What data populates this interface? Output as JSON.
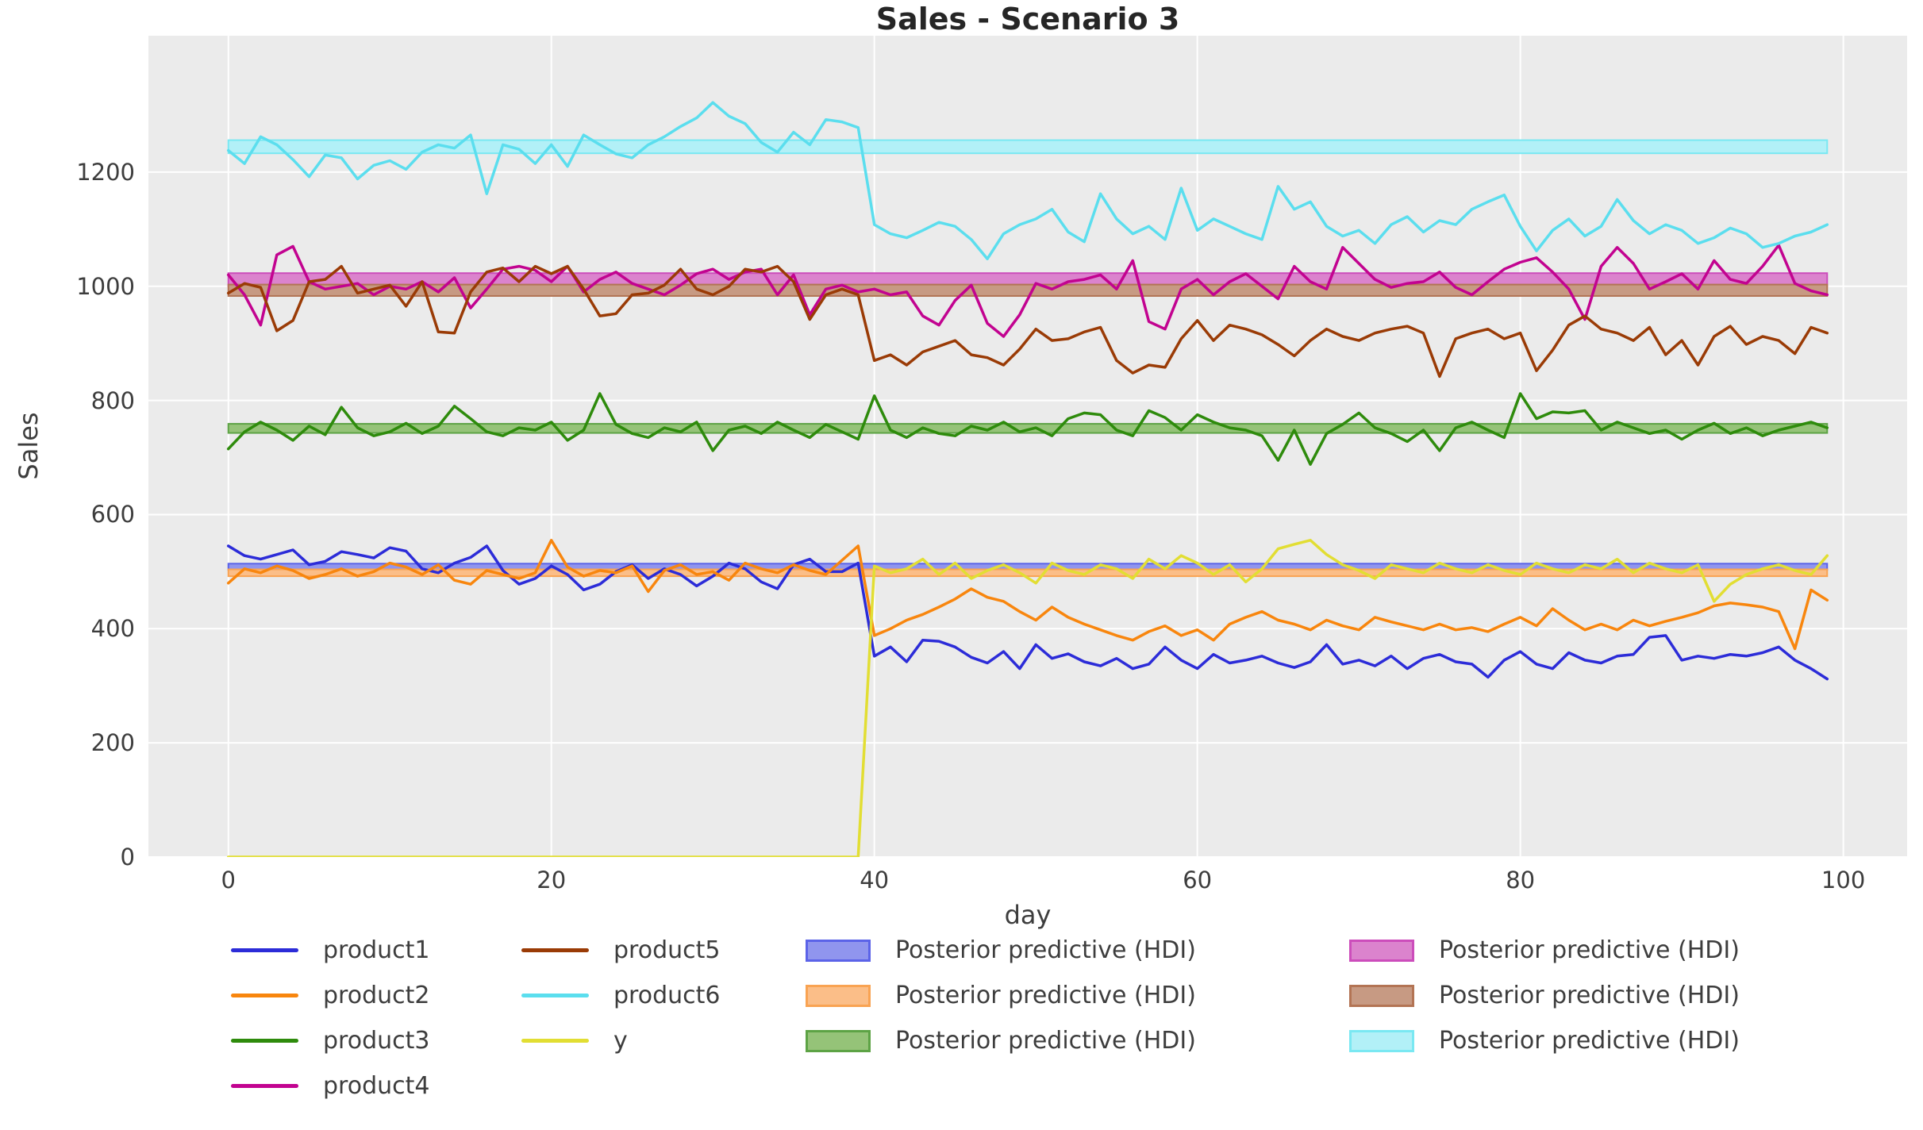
{
  "title": "Sales - Scenario 3",
  "chart_data": {
    "type": "line",
    "title": "Sales - Scenario 3",
    "xlabel": "day",
    "ylabel": "Sales",
    "xlim": [
      -4.95,
      103.95
    ],
    "ylim": [
      0,
      1439
    ],
    "x_ticks": [
      0,
      20,
      40,
      60,
      80,
      100
    ],
    "y_ticks": [
      0,
      200,
      400,
      600,
      800,
      1000,
      1200
    ],
    "grid": true,
    "grid_color": "#ffffff",
    "plot_background": "#ebebeb",
    "figure_background": "#ffffff",
    "legend_position": "below",
    "series": [
      {
        "name": "product1",
        "color": "#2c2cd8",
        "values": [
          545,
          528,
          522,
          530,
          538,
          512,
          518,
          535,
          530,
          524,
          542,
          536,
          505,
          498,
          515,
          525,
          545,
          502,
          478,
          488,
          510,
          495,
          468,
          478,
          500,
          512,
          488,
          505,
          495,
          475,
          492,
          515,
          505,
          482,
          470,
          512,
          522,
          500,
          500,
          515,
          352,
          368,
          342,
          380,
          378,
          368,
          350,
          340,
          360,
          330,
          372,
          348,
          356,
          342,
          335,
          348,
          330,
          338,
          368,
          345,
          330,
          355,
          340,
          345,
          352,
          340,
          332,
          342,
          372,
          338,
          345,
          335,
          352,
          330,
          348,
          355,
          342,
          338,
          315,
          345,
          360,
          338,
          330,
          358,
          345,
          340,
          352,
          355,
          385,
          388,
          345,
          352,
          348,
          355,
          352,
          358,
          368,
          345,
          330,
          312
        ]
      },
      {
        "name": "product2",
        "color": "#f8860e",
        "values": [
          480,
          505,
          498,
          510,
          502,
          488,
          495,
          505,
          492,
          500,
          515,
          508,
          495,
          512,
          485,
          478,
          502,
          495,
          488,
          498,
          555,
          508,
          492,
          502,
          498,
          510,
          465,
          502,
          512,
          495,
          500,
          485,
          515,
          505,
          498,
          512,
          502,
          495,
          520,
          545,
          388,
          400,
          415,
          425,
          438,
          452,
          470,
          455,
          448,
          430,
          415,
          438,
          420,
          408,
          398,
          388,
          380,
          395,
          405,
          388,
          398,
          380,
          408,
          420,
          430,
          415,
          408,
          398,
          415,
          405,
          398,
          420,
          412,
          405,
          398,
          408,
          398,
          402,
          395,
          408,
          420,
          405,
          435,
          415,
          398,
          408,
          398,
          415,
          405,
          413,
          420,
          428,
          440,
          445,
          442,
          438,
          430,
          365,
          468,
          450
        ]
      },
      {
        "name": "product3",
        "color": "#2e8b0c",
        "values": [
          715,
          745,
          762,
          748,
          730,
          755,
          740,
          788,
          752,
          738,
          745,
          760,
          742,
          755,
          790,
          768,
          745,
          738,
          752,
          748,
          762,
          730,
          748,
          812,
          758,
          742,
          735,
          752,
          745,
          762,
          712,
          748,
          755,
          742,
          762,
          748,
          735,
          758,
          745,
          732,
          808,
          748,
          735,
          752,
          742,
          738,
          755,
          748,
          762,
          745,
          752,
          738,
          768,
          778,
          775,
          748,
          738,
          782,
          770,
          748,
          775,
          762,
          752,
          748,
          738,
          695,
          748,
          688,
          742,
          758,
          778,
          752,
          742,
          728,
          748,
          712,
          752,
          762,
          748,
          735,
          812,
          768,
          780,
          778,
          782,
          748,
          762,
          752,
          742,
          748,
          732,
          748,
          760,
          742,
          752,
          738,
          748,
          755,
          762,
          752
        ]
      },
      {
        "name": "product4",
        "color": "#c20390",
        "values": [
          1020,
          985,
          932,
          1055,
          1070,
          1008,
          995,
          1000,
          1005,
          985,
          1000,
          995,
          1008,
          990,
          1015,
          962,
          995,
          1030,
          1035,
          1028,
          1008,
          1035,
          990,
          1012,
          1025,
          1005,
          995,
          985,
          1002,
          1022,
          1030,
          1012,
          1025,
          1030,
          985,
          1020,
          950,
          995,
          1002,
          990,
          995,
          985,
          990,
          948,
          932,
          975,
          1002,
          935,
          912,
          950,
          1005,
          995,
          1008,
          1012,
          1020,
          995,
          1045,
          938,
          925,
          995,
          1012,
          985,
          1008,
          1022,
          1000,
          978,
          1035,
          1008,
          995,
          1068,
          1040,
          1012,
          998,
          1005,
          1008,
          1025,
          998,
          985,
          1008,
          1030,
          1042,
          1050,
          1025,
          995,
          942,
          1035,
          1068,
          1040,
          995,
          1008,
          1022,
          995,
          1045,
          1012,
          1005,
          1035,
          1072,
          1005,
          992,
          985
        ]
      },
      {
        "name": "product5",
        "color": "#9a3b06",
        "values": [
          988,
          1005,
          998,
          922,
          940,
          1008,
          1012,
          1035,
          988,
          995,
          1002,
          965,
          1008,
          920,
          918,
          990,
          1025,
          1032,
          1008,
          1035,
          1022,
          1035,
          995,
          948,
          952,
          985,
          988,
          1002,
          1030,
          995,
          985,
          1000,
          1030,
          1025,
          1035,
          1008,
          942,
          985,
          995,
          985,
          870,
          880,
          862,
          885,
          895,
          905,
          880,
          875,
          862,
          890,
          925,
          905,
          908,
          920,
          928,
          870,
          848,
          862,
          858,
          908,
          940,
          905,
          932,
          925,
          915,
          898,
          878,
          905,
          925,
          912,
          905,
          918,
          925,
          930,
          918,
          842,
          908,
          918,
          925,
          908,
          918,
          852,
          888,
          932,
          948,
          925,
          918,
          905,
          928,
          880,
          905,
          862,
          912,
          930,
          898,
          912,
          905,
          882,
          928,
          918
        ]
      },
      {
        "name": "product6",
        "color": "#5bdeee",
        "values": [
          1238,
          1215,
          1262,
          1248,
          1222,
          1192,
          1230,
          1225,
          1188,
          1212,
          1220,
          1205,
          1235,
          1248,
          1242,
          1265,
          1162,
          1248,
          1240,
          1215,
          1248,
          1210,
          1265,
          1248,
          1232,
          1225,
          1248,
          1262,
          1280,
          1295,
          1322,
          1298,
          1285,
          1252,
          1235,
          1270,
          1248,
          1292,
          1288,
          1278,
          1108,
          1092,
          1085,
          1098,
          1112,
          1105,
          1082,
          1048,
          1092,
          1108,
          1118,
          1135,
          1095,
          1078,
          1162,
          1118,
          1092,
          1105,
          1082,
          1172,
          1098,
          1118,
          1105,
          1092,
          1082,
          1175,
          1135,
          1148,
          1105,
          1088,
          1098,
          1075,
          1108,
          1122,
          1095,
          1115,
          1108,
          1135,
          1148,
          1160,
          1105,
          1062,
          1098,
          1118,
          1088,
          1105,
          1152,
          1115,
          1092,
          1108,
          1098,
          1075,
          1085,
          1102,
          1092,
          1068,
          1075,
          1088,
          1095,
          1108
        ]
      },
      {
        "name": "y",
        "color": "#e2de33",
        "values": [
          0,
          0,
          0,
          0,
          0,
          0,
          0,
          0,
          0,
          0,
          0,
          0,
          0,
          0,
          0,
          0,
          0,
          0,
          0,
          0,
          0,
          0,
          0,
          0,
          0,
          0,
          0,
          0,
          0,
          0,
          0,
          0,
          0,
          0,
          0,
          0,
          0,
          0,
          0,
          0,
          510,
          498,
          505,
          522,
          495,
          515,
          488,
          502,
          512,
          498,
          480,
          515,
          502,
          495,
          512,
          505,
          488,
          522,
          505,
          528,
          515,
          495,
          512,
          482,
          505,
          540,
          548,
          555,
          530,
          512,
          502,
          488,
          512,
          505,
          498,
          515,
          505,
          498,
          512,
          502,
          495,
          515,
          505,
          498,
          512,
          505,
          522,
          498,
          515,
          505,
          498,
          512,
          448,
          478,
          495,
          505,
          512,
          502,
          495,
          528
        ]
      }
    ],
    "bands": [
      {
        "series": "product1",
        "label": "Posterior predictive (HDI)",
        "lo": 503,
        "hi": 514,
        "fill": "#9095ee",
        "edge": "#5b63e8",
        "x_from": 0,
        "x_to": 99
      },
      {
        "series": "product2",
        "label": "Posterior predictive (HDI)",
        "lo": 492,
        "hi": 504,
        "fill": "#fbbe88",
        "edge": "#f9a352",
        "x_from": 0,
        "x_to": 99
      },
      {
        "series": "product3",
        "label": "Posterior predictive (HDI)",
        "lo": 743,
        "hi": 759,
        "fill": "#95c378",
        "edge": "#5da345",
        "x_from": 0,
        "x_to": 99
      },
      {
        "series": "product4",
        "label": "Posterior predictive (HDI)",
        "lo": 1000,
        "hi": 1023,
        "fill": "#db83cd",
        "edge": "#cc4dbb",
        "x_from": 0,
        "x_to": 99
      },
      {
        "series": "product5",
        "label": "Posterior predictive (HDI)",
        "lo": 983,
        "hi": 1003,
        "fill": "#c79a83",
        "edge": "#b37454",
        "x_from": 0,
        "x_to": 99
      },
      {
        "series": "product6",
        "label": "Posterior predictive (HDI)",
        "lo": 1233,
        "hi": 1256,
        "fill": "#b2f0f7",
        "edge": "#7ae8f2",
        "x_from": 0,
        "x_to": 99
      }
    ]
  },
  "legend": {
    "columns": [
      {
        "type": "line",
        "entries": [
          {
            "label": "product1",
            "color": "#2c2cd8"
          },
          {
            "label": "product2",
            "color": "#f8860e"
          },
          {
            "label": "product3",
            "color": "#2e8b0c"
          },
          {
            "label": "product4",
            "color": "#c20390"
          }
        ]
      },
      {
        "type": "line",
        "entries": [
          {
            "label": "product5",
            "color": "#9a3b06"
          },
          {
            "label": "product6",
            "color": "#5bdeee"
          },
          {
            "label": "y",
            "color": "#e2de33"
          }
        ]
      },
      {
        "type": "patch",
        "entries": [
          {
            "label": "Posterior predictive (HDI)",
            "fill": "#9095ee",
            "edge": "#5b63e8"
          },
          {
            "label": "Posterior predictive (HDI)",
            "fill": "#fbbe88",
            "edge": "#f9a352"
          },
          {
            "label": "Posterior predictive (HDI)",
            "fill": "#95c378",
            "edge": "#5da345"
          }
        ]
      },
      {
        "type": "patch",
        "entries": [
          {
            "label": "Posterior predictive (HDI)",
            "fill": "#db83cd",
            "edge": "#cc4dbb"
          },
          {
            "label": "Posterior predictive (HDI)",
            "fill": "#c79a83",
            "edge": "#b37454"
          },
          {
            "label": "Posterior predictive (HDI)",
            "fill": "#b2f0f7",
            "edge": "#7ae8f2"
          }
        ]
      }
    ]
  }
}
